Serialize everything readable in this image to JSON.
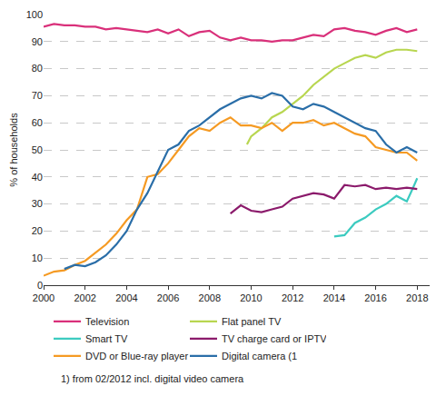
{
  "chart_data": {
    "type": "line",
    "y_label": "% of households",
    "footnote": "1) from 02/2012 incl. digital video camera",
    "xlim": [
      2000,
      2018.6
    ],
    "xticks": [
      2000,
      2002,
      2004,
      2006,
      2008,
      2010,
      2012,
      2014,
      2016,
      2018
    ],
    "ylim": [
      0,
      100
    ],
    "yticks": [
      0,
      10,
      20,
      30,
      40,
      50,
      60,
      70,
      80,
      90,
      100
    ],
    "grid": true,
    "legend": "bottom",
    "series": [
      {
        "name": "Television",
        "color": "#d9307a",
        "x": [
          2000,
          2000.5,
          2001,
          2001.5,
          2002,
          2002.5,
          2003,
          2003.5,
          2004,
          2004.5,
          2005,
          2005.5,
          2006,
          2006.5,
          2007,
          2007.5,
          2008,
          2008.5,
          2009,
          2009.5,
          2010,
          2010.5,
          2011,
          2011.5,
          2012,
          2012.5,
          2013,
          2013.5,
          2014,
          2014.5,
          2015,
          2015.5,
          2016,
          2016.5,
          2017,
          2017.5,
          2018
        ],
        "values": [
          95.5,
          96.5,
          96,
          96,
          95.5,
          95.5,
          94.5,
          95,
          94.5,
          94,
          93.5,
          94.5,
          93,
          94.5,
          92,
          93.5,
          94,
          91.5,
          90.5,
          91.5,
          90.5,
          90.5,
          90,
          90.5,
          90.5,
          91.5,
          92.5,
          92,
          94.5,
          95,
          94,
          93.5,
          92.5,
          94,
          95,
          93.5,
          94.5
        ]
      },
      {
        "name": "Flat panel TV",
        "color": "#b8d650",
        "x": [
          2009.8,
          2010,
          2010.5,
          2011,
          2011.5,
          2012,
          2012.5,
          2013,
          2013.5,
          2014,
          2014.5,
          2015,
          2015.5,
          2016,
          2016.5,
          2017,
          2017.5,
          2018
        ],
        "values": [
          52,
          55,
          58,
          62,
          64,
          67,
          70,
          74,
          77,
          80,
          82,
          84,
          85,
          84,
          86,
          87,
          87,
          86.5
        ]
      },
      {
        "name": "Smart TV",
        "color": "#3ccbc0",
        "x": [
          2014,
          2014.5,
          2015,
          2015.5,
          2016,
          2016.5,
          2017,
          2017.5,
          2017.8,
          2018
        ],
        "values": [
          18,
          18.5,
          23,
          25,
          28,
          30,
          33,
          31,
          36,
          39.5
        ]
      },
      {
        "name": "TV charge card or IPTV",
        "color": "#8b1a6b",
        "x": [
          2009,
          2009.5,
          2010,
          2010.5,
          2011,
          2011.5,
          2012,
          2012.5,
          2013,
          2013.5,
          2014,
          2014.5,
          2015,
          2015.5,
          2016,
          2016.5,
          2017,
          2017.5,
          2018
        ],
        "values": [
          26.5,
          29.5,
          27.5,
          27,
          28,
          29,
          32,
          33,
          34,
          33.5,
          32,
          37,
          36.5,
          37,
          35.5,
          36,
          35.5,
          36,
          35.5
        ]
      },
      {
        "name": "DVD or Blue-ray player",
        "color": "#f59a23",
        "x": [
          2000,
          2000.5,
          2001,
          2001.5,
          2002,
          2002.5,
          2003,
          2003.5,
          2004,
          2004.5,
          2005,
          2005.5,
          2006,
          2006.5,
          2007,
          2007.5,
          2008,
          2008.5,
          2009,
          2009.5,
          2010,
          2010.5,
          2011,
          2011.5,
          2012,
          2012.5,
          2013,
          2013.5,
          2014,
          2014.5,
          2015,
          2015.5,
          2016,
          2016.5,
          2017,
          2017.5,
          2018
        ],
        "values": [
          3.5,
          5,
          5.5,
          7.5,
          9,
          12,
          15,
          19,
          24,
          28,
          40,
          41,
          45,
          50,
          55,
          58,
          57,
          60,
          62,
          59,
          59,
          58,
          60,
          57,
          60,
          60,
          61,
          59,
          60,
          58,
          56,
          55,
          51,
          50,
          49,
          49,
          46
        ]
      },
      {
        "name": "Digital camera (1",
        "color": "#2a6ea8",
        "x": [
          2001,
          2001.5,
          2002,
          2002.5,
          2003,
          2003.5,
          2004,
          2004.5,
          2005,
          2005.5,
          2006,
          2006.5,
          2007,
          2007.5,
          2008,
          2008.5,
          2009,
          2009.5,
          2010,
          2010.5,
          2011,
          2011.5,
          2012,
          2012.5,
          2013,
          2013.5,
          2014,
          2014.5,
          2015,
          2015.5,
          2016,
          2016.5,
          2017,
          2017.5,
          2018
        ],
        "values": [
          6,
          7.5,
          7,
          8.5,
          11,
          15,
          20,
          28,
          34,
          42,
          50,
          52,
          57,
          59,
          62,
          65,
          67,
          69,
          70,
          69,
          71,
          70,
          66,
          65,
          67,
          66,
          64,
          62,
          60,
          58,
          57,
          52,
          49,
          51,
          49
        ]
      }
    ]
  }
}
